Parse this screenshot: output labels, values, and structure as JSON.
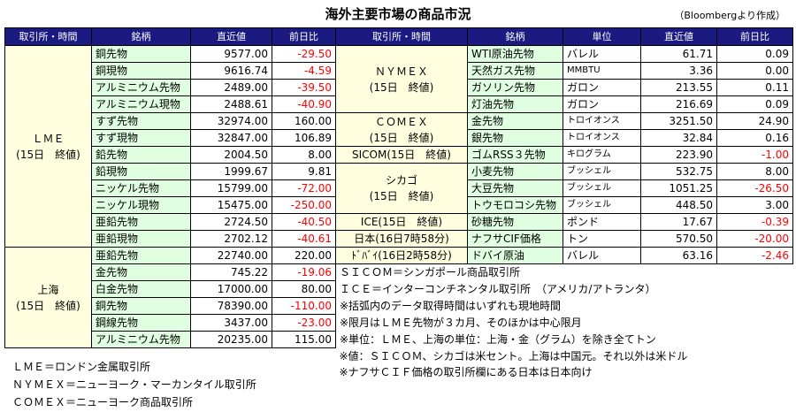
{
  "title": "海外主要市場の商品市況",
  "source": "（Bloombergより作成）",
  "headers": {
    "left": [
      "取引所・時間",
      "銘柄",
      "直近値",
      "前日比"
    ],
    "right": [
      "取引所・時間",
      "銘柄",
      "単位",
      "直近値",
      "前日比"
    ]
  },
  "left_groups": [
    {
      "exchange": [
        "ＬＭＥ",
        "(15日　終値)"
      ],
      "rows": [
        {
          "name": "銅先物",
          "value": "9577.00",
          "change": "-29.50",
          "neg": true
        },
        {
          "name": "銅現物",
          "value": "9616.74",
          "change": "-4.59",
          "neg": true
        },
        {
          "name": "アルミニウム先物",
          "value": "2489.00",
          "change": "-39.50",
          "neg": true
        },
        {
          "name": "アルミニウム現物",
          "value": "2488.61",
          "change": "-40.90",
          "neg": true
        },
        {
          "name": "すず先物",
          "value": "32974.00",
          "change": "160.00",
          "neg": false
        },
        {
          "name": "すず現物",
          "value": "32847.00",
          "change": "106.89",
          "neg": false
        },
        {
          "name": "鉛先物",
          "value": "2004.50",
          "change": "8.00",
          "neg": false
        },
        {
          "name": "鉛現物",
          "value": "1999.67",
          "change": "9.81",
          "neg": false
        },
        {
          "name": "ニッケル先物",
          "value": "15799.00",
          "change": "-72.00",
          "neg": true
        },
        {
          "name": "ニッケル現物",
          "value": "15475.00",
          "change": "-250.00",
          "neg": true
        },
        {
          "name": "亜鉛先物",
          "value": "2724.50",
          "change": "-40.50",
          "neg": true
        },
        {
          "name": "亜鉛現物",
          "value": "2702.12",
          "change": "-40.61",
          "neg": true
        }
      ]
    },
    {
      "exchange": [
        "上海",
        "(15日　終値)"
      ],
      "rows": [
        {
          "name": "亜鉛先物",
          "value": "22740.00",
          "change": "220.00",
          "neg": false
        },
        {
          "name": "金先物",
          "value": "745.22",
          "change": "-19.06",
          "neg": true
        },
        {
          "name": "白金先物",
          "value": "17000.00",
          "change": "80.00",
          "neg": false
        },
        {
          "name": "銅先物",
          "value": "78390.00",
          "change": "-110.00",
          "neg": true
        },
        {
          "name": "鋼線先物",
          "value": "3437.00",
          "change": "-23.00",
          "neg": true
        },
        {
          "name": "アルミニウム先物",
          "value": "20235.00",
          "change": "115.00",
          "neg": false
        }
      ]
    }
  ],
  "right_groups": [
    {
      "exchange": [
        "ＮＹＭＥＸ",
        "(15日　終値)"
      ],
      "rows": [
        {
          "name": "WTI原油先物",
          "unit": "バレル",
          "value": "61.71",
          "change": "0.09",
          "neg": false
        },
        {
          "name": "天然ガス先物",
          "unit": "MMBTU",
          "value": "3.36",
          "change": "0.00",
          "neg": false
        },
        {
          "name": "ガソリン先物",
          "unit": "ガロン",
          "value": "213.55",
          "change": "0.11",
          "neg": false
        },
        {
          "name": "灯油先物",
          "unit": "ガロン",
          "value": "216.69",
          "change": "0.09",
          "neg": false
        }
      ]
    },
    {
      "exchange": [
        "ＣＯＭＥＸ",
        "(15日　終値)"
      ],
      "rows": [
        {
          "name": "金先物",
          "unit": "トロイオンス",
          "value": "3251.50",
          "change": "24.90",
          "neg": false
        },
        {
          "name": "銀先物",
          "unit": "トロイオンス",
          "value": "32.84",
          "change": "0.16",
          "neg": false
        }
      ]
    },
    {
      "exchange": [
        "SICOM(15日　終値)"
      ],
      "rows": [
        {
          "name": "ゴムRSS３先物",
          "unit": "キログラム",
          "value": "223.90",
          "change": "-1.00",
          "neg": true
        }
      ]
    },
    {
      "exchange": [
        "シカゴ",
        "(15日　終値)"
      ],
      "rows": [
        {
          "name": "小麦先物",
          "unit": "ブッシェル",
          "value": "532.75",
          "change": "8.00",
          "neg": false
        },
        {
          "name": "大豆先物",
          "unit": "ブッシェル",
          "value": "1051.25",
          "change": "-26.50",
          "neg": true
        },
        {
          "name": "トウモロコシ先物",
          "unit": "ブッシェル",
          "value": "448.50",
          "change": "3.00",
          "neg": false
        }
      ]
    },
    {
      "exchange": [
        "ICE(15日　終値)"
      ],
      "rows": [
        {
          "name": "砂糖先物",
          "unit": "ポンド",
          "value": "17.67",
          "change": "-0.39",
          "neg": true
        }
      ]
    },
    {
      "exchange": [
        "日本(16日7時58分)"
      ],
      "rows": [
        {
          "name": "ナフサCIF価格",
          "unit": "トン",
          "value": "570.50",
          "change": "-20.00",
          "neg": true
        }
      ]
    },
    {
      "exchange": [
        "ﾄﾞﾊﾞｲ(16日2時58分)"
      ],
      "rows": [
        {
          "name": "ドバイ原油",
          "unit": "バレル",
          "value": "63.16",
          "change": "-2.46",
          "neg": true
        }
      ]
    }
  ],
  "notes_right": [
    "ＳＩＣＯＭ＝シンガポール商品取引所",
    "ＩＣＥ＝インターコンチネンタル取引所　（アメリカ/アトランタ）",
    "※括弧内のデータ取得時間はいずれも現地時間",
    "※限月はＬＭＥ先物が３カ月、そのほかは中心限月",
    "※単位：ＬＭＥ、上海の単位：上海・金（グラム）を除き全てトン",
    "※値：ＳＩＣＯＭ、シカゴは米セント。上海は中国元。それ以外は米ドル",
    "※ナフサＣＩＦ価格の取引所欄にある日本は日本向け"
  ],
  "notes_bottom": [
    "ＬＭＥ＝ロンドン金属取引所",
    "ＮＹＭＥＸ＝ニューヨーク・マーカンタイル取引所",
    "ＣＯＭＥＸ＝ニューヨーク商品取引所"
  ]
}
